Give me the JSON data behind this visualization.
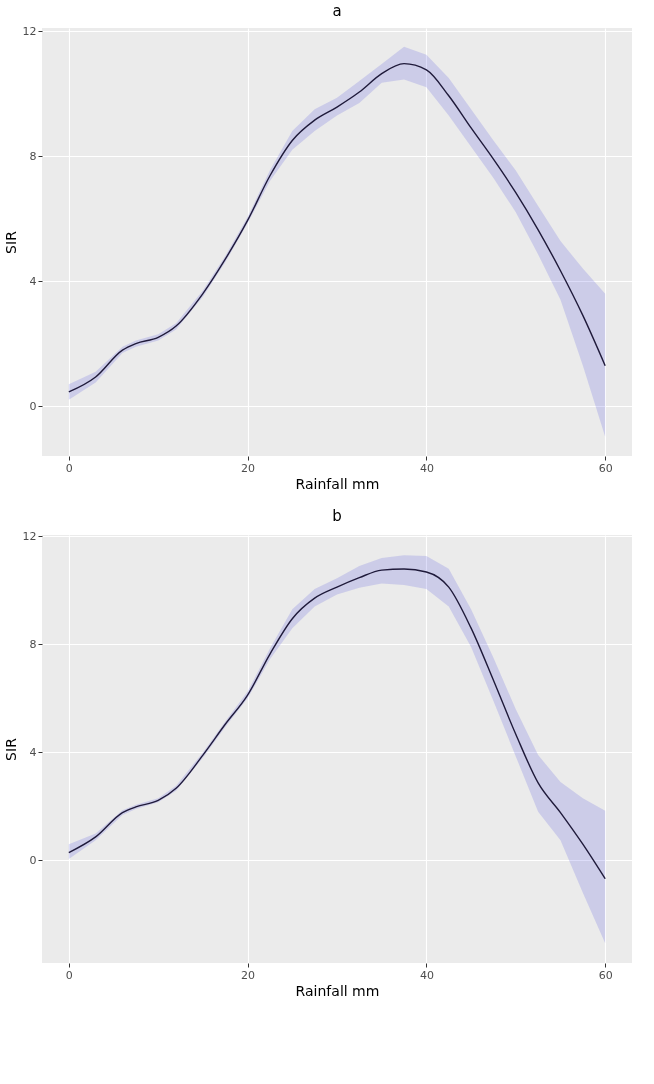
{
  "chart_data": [
    {
      "type": "line",
      "title": "a",
      "xlabel": "Rainfall mm",
      "ylabel": "SIR",
      "xlim": [
        -3,
        63
      ],
      "ylim": [
        -1.6,
        12.1
      ],
      "xticks": [
        0,
        20,
        40,
        60
      ],
      "yticks": [
        0,
        4,
        8,
        12
      ],
      "grid": true,
      "x": [
        0,
        3,
        6,
        7.5,
        10,
        12,
        15,
        17.5,
        20,
        22.5,
        25,
        27.5,
        30,
        32.5,
        35,
        37.5,
        40,
        42.5,
        45,
        47.5,
        50,
        52.5,
        55,
        57.5,
        60
      ],
      "series": [
        {
          "color": "#1f1a3a",
          "values": [
            0.45,
            0.93,
            1.79,
            2.0,
            2.2,
            2.56,
            3.6,
            4.7,
            5.94,
            7.37,
            8.5,
            9.15,
            9.57,
            10.05,
            10.64,
            10.96,
            10.76,
            9.93,
            8.9,
            7.9,
            6.83,
            5.64,
            4.33,
            2.9,
            1.29
          ],
          "lower": [
            0.2,
            0.75,
            1.7,
            1.9,
            2.1,
            2.45,
            3.5,
            4.6,
            5.85,
            7.2,
            8.2,
            8.8,
            9.3,
            9.7,
            10.35,
            10.45,
            10.2,
            9.3,
            8.3,
            7.3,
            6.2,
            4.85,
            3.4,
            1.3,
            -0.98
          ],
          "upper": [
            0.7,
            1.1,
            1.9,
            2.1,
            2.3,
            2.65,
            3.7,
            4.8,
            6.05,
            7.55,
            8.8,
            9.5,
            9.87,
            10.4,
            10.95,
            11.5,
            11.24,
            10.5,
            9.5,
            8.5,
            7.54,
            6.4,
            5.28,
            4.4,
            3.59
          ]
        }
      ]
    },
    {
      "type": "line",
      "title": "b",
      "xlabel": "Rainfall mm",
      "ylabel": "SIR",
      "xlim": [
        -3,
        63
      ],
      "ylim": [
        -3.8,
        12.05
      ],
      "xticks": [
        0,
        20,
        40,
        60
      ],
      "yticks": [
        0,
        4,
        8,
        12
      ],
      "grid": true,
      "x": [
        0,
        3,
        6,
        7.5,
        10,
        12,
        15,
        17.5,
        20,
        22.5,
        25,
        27.5,
        30,
        32.5,
        35,
        37.5,
        40,
        42.5,
        45,
        47.5,
        50,
        52.5,
        55,
        57.5,
        60
      ],
      "series": [
        {
          "color": "#1f1a3a",
          "values": [
            0.29,
            0.87,
            1.77,
            1.98,
            2.22,
            2.67,
            3.9,
            5.04,
            6.12,
            7.64,
            8.95,
            9.71,
            10.12,
            10.47,
            10.75,
            10.79,
            10.68,
            10.12,
            8.6,
            6.67,
            4.67,
            2.87,
            1.77,
            0.6,
            -0.68
          ],
          "lower": [
            0.05,
            0.75,
            1.68,
            1.9,
            2.15,
            2.58,
            3.8,
            4.94,
            6.0,
            7.45,
            8.6,
            9.4,
            9.85,
            10.1,
            10.25,
            10.2,
            10.05,
            9.4,
            7.9,
            5.9,
            3.85,
            1.8,
            0.75,
            -1.2,
            -3.07
          ],
          "upper": [
            0.6,
            1.0,
            1.86,
            2.06,
            2.3,
            2.76,
            4.0,
            5.14,
            6.25,
            7.85,
            9.3,
            10.05,
            10.45,
            10.9,
            11.2,
            11.3,
            11.27,
            10.8,
            9.3,
            7.5,
            5.6,
            3.9,
            2.9,
            2.3,
            1.84
          ]
        }
      ]
    }
  ]
}
